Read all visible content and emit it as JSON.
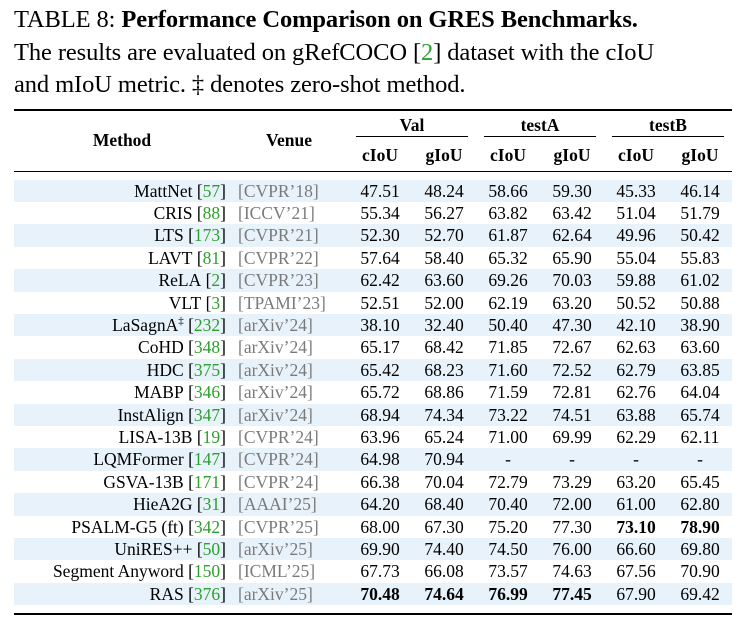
{
  "caption": {
    "label": "TABLE 8:",
    "title": "Performance Comparison on GRES Benchmarks.",
    "text_part1": "The results are evaluated on gRefCOCO [",
    "ref_num": "2",
    "text_part2": "] dataset with the cIoU",
    "text_line3": "and mIoU metric. ‡ denotes zero-shot method."
  },
  "header": {
    "method": "Method",
    "venue": "Venue",
    "groups": [
      "Val",
      "testA",
      "testB"
    ],
    "metrics": [
      "cIoU",
      "gIoU",
      "cIoU",
      "gIoU",
      "cIoU",
      "gIoU"
    ]
  },
  "rows": [
    {
      "method": "MattNet",
      "ref": "57",
      "sup": "",
      "venue": "[CVPR’18]",
      "values": [
        "47.51",
        "48.24",
        "58.66",
        "59.30",
        "45.33",
        "46.14"
      ],
      "bold": []
    },
    {
      "method": "CRIS",
      "ref": "88",
      "sup": "",
      "venue": "[ICCV’21]",
      "values": [
        "55.34",
        "56.27",
        "63.82",
        "63.42",
        "51.04",
        "51.79"
      ],
      "bold": []
    },
    {
      "method": "LTS",
      "ref": "173",
      "sup": "",
      "venue": "[CVPR’21]",
      "values": [
        "52.30",
        "52.70",
        "61.87",
        "62.64",
        "49.96",
        "50.42"
      ],
      "bold": []
    },
    {
      "method": "LAVT",
      "ref": "81",
      "sup": "",
      "venue": "[CVPR’22]",
      "values": [
        "57.64",
        "58.40",
        "65.32",
        "65.90",
        "55.04",
        "55.83"
      ],
      "bold": []
    },
    {
      "method": "ReLA",
      "ref": "2",
      "sup": "",
      "venue": "[CVPR’23]",
      "values": [
        "62.42",
        "63.60",
        "69.26",
        "70.03",
        "59.88",
        "61.02"
      ],
      "bold": []
    },
    {
      "method": "VLT",
      "ref": "3",
      "sup": "",
      "venue": "[TPAMI’23]",
      "values": [
        "52.51",
        "52.00",
        "62.19",
        "63.20",
        "50.52",
        "50.88"
      ],
      "bold": []
    },
    {
      "method": "LaSagnA",
      "ref": "232",
      "sup": "‡",
      "venue": "[arXiv’24]",
      "values": [
        "38.10",
        "32.40",
        "50.40",
        "47.30",
        "42.10",
        "38.90"
      ],
      "bold": []
    },
    {
      "method": "CoHD",
      "ref": "348",
      "sup": "",
      "venue": "[arXiv’24]",
      "values": [
        "65.17",
        "68.42",
        "71.85",
        "72.67",
        "62.63",
        "63.60"
      ],
      "bold": []
    },
    {
      "method": "HDC",
      "ref": "375",
      "sup": "",
      "venue": "[arXiv’24]",
      "values": [
        "65.42",
        "68.23",
        "71.60",
        "72.52",
        "62.79",
        "63.85"
      ],
      "bold": []
    },
    {
      "method": "MABP",
      "ref": "346",
      "sup": "",
      "venue": "[arXiv’24]",
      "values": [
        "65.72",
        "68.86",
        "71.59",
        "72.81",
        "62.76",
        "64.04"
      ],
      "bold": []
    },
    {
      "method": "InstAlign",
      "ref": "347",
      "sup": "",
      "venue": "[arXiv’24]",
      "values": [
        "68.94",
        "74.34",
        "73.22",
        "74.51",
        "63.88",
        "65.74"
      ],
      "bold": []
    },
    {
      "method": "LISA-13B",
      "ref": "19",
      "sup": "",
      "venue": "[CVPR’24]",
      "values": [
        "63.96",
        "65.24",
        "71.00",
        "69.99",
        "62.29",
        "62.11"
      ],
      "bold": []
    },
    {
      "method": "LQMFormer",
      "ref": "147",
      "sup": "",
      "venue": "[CVPR’24]",
      "values": [
        "64.98",
        "70.94",
        "-",
        "-",
        "-",
        "-"
      ],
      "bold": []
    },
    {
      "method": "GSVA-13B",
      "ref": "171",
      "sup": "",
      "venue": "[CVPR’24]",
      "values": [
        "66.38",
        "70.04",
        "72.79",
        "73.29",
        "63.20",
        "65.45"
      ],
      "bold": []
    },
    {
      "method": "HieA2G",
      "ref": "31",
      "sup": "",
      "venue": "[AAAI’25]",
      "values": [
        "64.20",
        "68.40",
        "70.40",
        "72.00",
        "61.00",
        "62.80"
      ],
      "bold": []
    },
    {
      "method": "PSALM-G5 (ft)",
      "ref": "342",
      "sup": "",
      "venue": "[CVPR’25]",
      "values": [
        "68.00",
        "67.30",
        "75.20",
        "77.30",
        "73.10",
        "78.90"
      ],
      "bold": [
        4,
        5
      ]
    },
    {
      "method": "UniRES++",
      "ref": "50",
      "sup": "",
      "venue": "[arXiv’25]",
      "values": [
        "69.90",
        "74.40",
        "74.50",
        "76.00",
        "66.60",
        "69.80"
      ],
      "bold": []
    },
    {
      "method": "Segment Anyword",
      "ref": "150",
      "sup": "",
      "venue": "[ICML’25]",
      "values": [
        "67.73",
        "66.08",
        "73.57",
        "74.63",
        "67.56",
        "70.90"
      ],
      "bold": []
    },
    {
      "method": "RAS ",
      "ref": "376",
      "sup": "",
      "venue": "[arXiv’25]",
      "values": [
        "70.48",
        "74.64",
        "76.99",
        "77.45",
        "67.90",
        "69.42"
      ],
      "bold": [
        0,
        1,
        2,
        3
      ]
    }
  ],
  "colors": {
    "stripe": "#e8f2fb",
    "ref": "#2ca02c",
    "venue": "#7a7a7a"
  }
}
